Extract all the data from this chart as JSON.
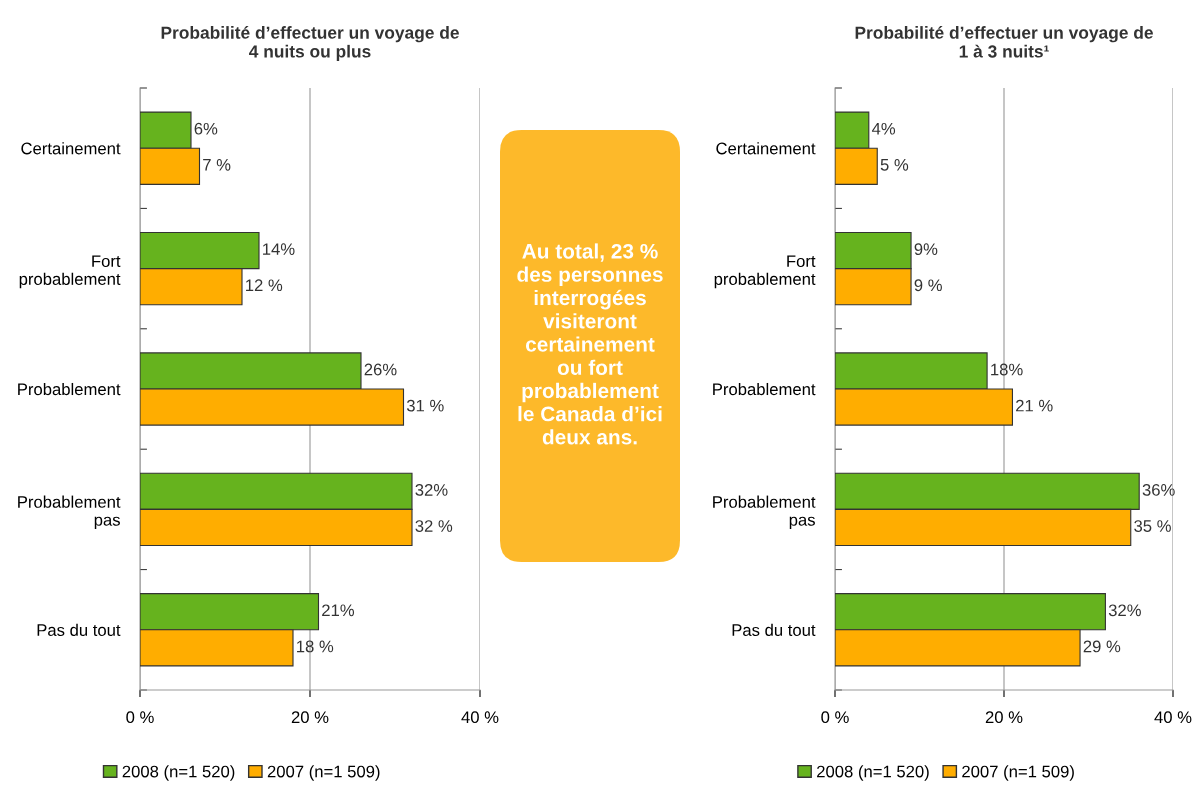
{
  "chart_data": [
    {
      "type": "bar",
      "orientation": "horizontal",
      "title": "Probabilité d’effectuer un voyage de\n4 nuits ou plus",
      "categories": [
        "Certainement",
        "Fort\nprobablement",
        "Probablement",
        "Probablement\npas",
        "Pas du tout"
      ],
      "series": [
        {
          "name": "2008 (n=1 520)",
          "color": "#66b31e",
          "values": [
            6,
            14,
            26,
            32,
            21
          ],
          "value_labels": [
            "6%",
            "14%",
            "26%",
            "32%",
            "21%"
          ]
        },
        {
          "name": "2007 (n=1 509)",
          "color": "#ffad00",
          "values": [
            7,
            12,
            31,
            32,
            18
          ],
          "value_labels": [
            "7 %",
            "12 %",
            "31 %",
            "32 %",
            "18 %"
          ]
        }
      ],
      "xlim": [
        0,
        40
      ],
      "xticks": [
        {
          "value": 0,
          "label": "0 %"
        },
        {
          "value": 20,
          "label": "20 %"
        },
        {
          "value": 40,
          "label": "40 %"
        }
      ],
      "grid": "x",
      "legend": "bottom"
    },
    {
      "type": "other",
      "annotations": [
        "Au total, 23 %\ndes personnes\ninterrogées\nvisiteront\ncertainement\nou fort\nprobablement\nle Canada d’ici\ndeux ans."
      ]
    },
    {
      "type": "bar",
      "orientation": "horizontal",
      "title": "Probabilité d’effectuer un voyage de\n1 à 3 nuits¹",
      "categories": [
        "Certainement",
        "Fort\nprobablement",
        "Probablement",
        "Probablement\npas",
        "Pas du tout"
      ],
      "series": [
        {
          "name": "2008 (n=1 520)",
          "color": "#66b31e",
          "values": [
            4,
            9,
            18,
            36,
            32
          ],
          "value_labels": [
            "4%",
            "9%",
            "18%",
            "36%",
            "32%"
          ]
        },
        {
          "name": "2007 (n=1 509)",
          "color": "#ffad00",
          "values": [
            5,
            9,
            21,
            35,
            29
          ],
          "value_labels": [
            "5 %",
            "9 %",
            "21 %",
            "35 %",
            "29 %"
          ]
        }
      ],
      "xlim": [
        0,
        40
      ],
      "xticks": [
        {
          "value": 0,
          "label": "0 %"
        },
        {
          "value": 20,
          "label": "20 %"
        },
        {
          "value": 40,
          "label": "40 %"
        }
      ],
      "grid": "x",
      "legend": "bottom"
    }
  ]
}
